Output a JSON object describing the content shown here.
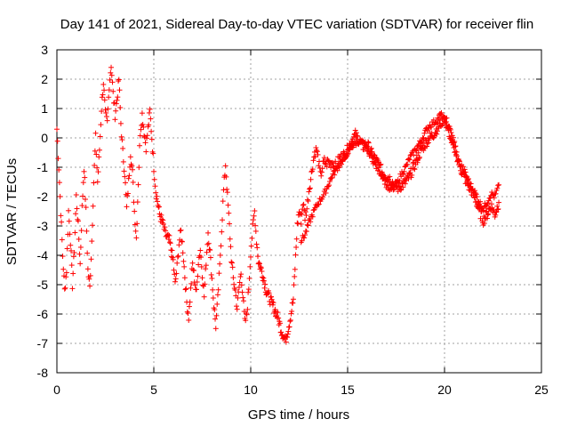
{
  "chart_data": {
    "type": "scatter",
    "title": "Day 141 of 2021, Sidereal Day-to-day VTEC variation (SDTVAR) for receiver flin",
    "xlabel": "GPS time / hours",
    "ylabel": "SDTVAR / TECUs",
    "xlim": [
      0,
      25
    ],
    "ylim": [
      -8,
      3
    ],
    "xticks": [
      "0",
      "5",
      "10",
      "15",
      "20",
      "25"
    ],
    "yticks": [
      "-8",
      "-7",
      "-6",
      "-5",
      "-4",
      "-3",
      "-2",
      "-1",
      "0",
      "1",
      "2",
      "3"
    ],
    "grid": true,
    "marker": "+",
    "color": "#ff0000",
    "series": [
      {
        "name": "SDTVAR",
        "trace": [
          [
            0.0,
            0.3
          ],
          [
            0.1,
            -1.0
          ],
          [
            0.2,
            -2.5
          ],
          [
            0.3,
            -4.0
          ],
          [
            0.4,
            -5.2
          ],
          [
            0.5,
            -4.5
          ],
          [
            0.6,
            -2.5
          ],
          [
            0.7,
            -3.5
          ],
          [
            0.8,
            -5.0
          ],
          [
            0.9,
            -3.8
          ],
          [
            1.0,
            -2.0
          ],
          [
            1.1,
            -3.0
          ],
          [
            1.2,
            -4.3
          ],
          [
            1.3,
            -2.4
          ],
          [
            1.4,
            -1.0
          ],
          [
            1.5,
            -2.5
          ],
          [
            1.6,
            -4.5
          ],
          [
            1.7,
            -5.1
          ],
          [
            1.8,
            -3.5
          ],
          [
            1.9,
            -1.5
          ],
          [
            2.0,
            0.0
          ],
          [
            2.1,
            -1.5
          ],
          [
            2.2,
            -0.4
          ],
          [
            2.3,
            1.0
          ],
          [
            2.4,
            1.9
          ],
          [
            2.5,
            0.8
          ],
          [
            2.6,
            0.5
          ],
          [
            2.7,
            1.8
          ],
          [
            2.8,
            2.5
          ],
          [
            2.9,
            1.5
          ],
          [
            3.0,
            0.8
          ],
          [
            3.1,
            1.3
          ],
          [
            3.2,
            2.0
          ],
          [
            3.3,
            0.5
          ],
          [
            3.4,
            -0.5
          ],
          [
            3.5,
            -1.2
          ],
          [
            3.6,
            -2.4
          ],
          [
            3.7,
            -1.5
          ],
          [
            3.8,
            -0.5
          ],
          [
            3.9,
            -1.2
          ],
          [
            4.0,
            -2.5
          ],
          [
            4.1,
            -3.4
          ],
          [
            4.2,
            -1.5
          ],
          [
            4.3,
            0.2
          ],
          [
            4.4,
            0.8
          ],
          [
            4.5,
            0.2
          ],
          [
            4.6,
            -0.3
          ],
          [
            4.7,
            0.3
          ],
          [
            4.8,
            0.9
          ],
          [
            4.9,
            0.0
          ],
          [
            5.0,
            -1.0
          ],
          [
            5.1,
            -1.8
          ],
          [
            5.3,
            -2.6
          ],
          [
            5.5,
            -3.0
          ],
          [
            5.6,
            -3.3
          ],
          [
            5.8,
            -3.5
          ],
          [
            6.0,
            -4.2
          ],
          [
            6.1,
            -5.0
          ],
          [
            6.2,
            -4.4
          ],
          [
            6.3,
            -3.6
          ],
          [
            6.4,
            -3.2
          ],
          [
            6.5,
            -3.8
          ],
          [
            6.6,
            -4.7
          ],
          [
            6.7,
            -5.6
          ],
          [
            6.8,
            -6.1
          ],
          [
            6.9,
            -5.2
          ],
          [
            7.0,
            -4.3
          ],
          [
            7.1,
            -4.8
          ],
          [
            7.2,
            -5.3
          ],
          [
            7.3,
            -4.2
          ],
          [
            7.4,
            -3.8
          ],
          [
            7.5,
            -4.6
          ],
          [
            7.6,
            -5.4
          ],
          [
            7.7,
            -4.2
          ],
          [
            7.8,
            -3.2
          ],
          [
            7.9,
            -3.9
          ],
          [
            8.0,
            -4.8
          ],
          [
            8.1,
            -5.7
          ],
          [
            8.2,
            -6.4
          ],
          [
            8.3,
            -5.5
          ],
          [
            8.4,
            -4.4
          ],
          [
            8.5,
            -3.1
          ],
          [
            8.6,
            -1.8
          ],
          [
            8.7,
            -0.9
          ],
          [
            8.8,
            -2.0
          ],
          [
            8.9,
            -3.0
          ],
          [
            9.0,
            -4.1
          ],
          [
            9.1,
            -4.8
          ],
          [
            9.2,
            -5.2
          ],
          [
            9.3,
            -5.8
          ],
          [
            9.4,
            -5.1
          ],
          [
            9.5,
            -4.6
          ],
          [
            9.6,
            -5.4
          ],
          [
            9.7,
            -6.3
          ],
          [
            9.8,
            -6.0
          ],
          [
            9.9,
            -5.1
          ],
          [
            10.0,
            -3.9
          ],
          [
            10.1,
            -3.1
          ],
          [
            10.2,
            -2.5
          ],
          [
            10.3,
            -3.5
          ],
          [
            10.4,
            -4.2
          ],
          [
            10.6,
            -4.6
          ],
          [
            10.8,
            -5.2
          ],
          [
            11.0,
            -5.5
          ],
          [
            11.2,
            -5.8
          ],
          [
            11.4,
            -6.1
          ],
          [
            11.6,
            -6.6
          ],
          [
            11.8,
            -6.9
          ],
          [
            12.0,
            -6.3
          ],
          [
            12.2,
            -5.5
          ],
          [
            12.4,
            -3.0
          ],
          [
            12.5,
            -2.5
          ],
          [
            12.6,
            -2.8
          ],
          [
            12.7,
            -2.2
          ],
          [
            12.8,
            -2.7
          ],
          [
            12.9,
            -2.4
          ],
          [
            13.0,
            -1.8
          ],
          [
            13.1,
            -1.4
          ],
          [
            13.2,
            -0.9
          ],
          [
            13.3,
            -0.5
          ],
          [
            13.4,
            -0.4
          ],
          [
            13.5,
            -0.8
          ],
          [
            13.6,
            -1.3
          ],
          [
            13.7,
            -1.0
          ],
          [
            13.8,
            -0.8
          ],
          [
            13.9,
            -0.9
          ],
          [
            14.0,
            -0.8
          ],
          [
            14.1,
            -0.9
          ],
          [
            14.2,
            -0.8
          ],
          [
            14.3,
            -0.9
          ],
          [
            14.4,
            -1.0
          ],
          [
            14.5,
            -0.8
          ],
          [
            14.6,
            -0.7
          ],
          [
            14.8,
            -0.6
          ],
          [
            15.0,
            -0.4
          ],
          [
            15.2,
            -0.1
          ],
          [
            15.4,
            0.1
          ],
          [
            15.6,
            -0.1
          ],
          [
            15.8,
            -0.3
          ],
          [
            16.0,
            -0.2
          ],
          [
            16.2,
            -0.5
          ],
          [
            16.4,
            -0.7
          ],
          [
            16.6,
            -0.9
          ],
          [
            16.8,
            -1.2
          ],
          [
            17.0,
            -1.3
          ],
          [
            17.2,
            -1.4
          ],
          [
            17.4,
            -1.6
          ],
          [
            17.6,
            -1.7
          ],
          [
            17.8,
            -1.6
          ],
          [
            18.0,
            -1.5
          ],
          [
            18.2,
            -1.3
          ],
          [
            18.4,
            -1.0
          ],
          [
            18.6,
            -0.7
          ],
          [
            18.8,
            -0.4
          ],
          [
            19.0,
            -0.2
          ],
          [
            19.2,
            0.0
          ],
          [
            19.4,
            0.1
          ],
          [
            19.6,
            0.3
          ],
          [
            19.8,
            0.5
          ],
          [
            20.0,
            0.7
          ],
          [
            20.2,
            0.4
          ],
          [
            20.4,
            0.0
          ],
          [
            20.6,
            -0.5
          ],
          [
            20.8,
            -1.0
          ],
          [
            21.0,
            -1.3
          ],
          [
            21.2,
            -1.6
          ],
          [
            21.4,
            -1.8
          ],
          [
            21.6,
            -2.1
          ],
          [
            21.8,
            -2.5
          ],
          [
            22.0,
            -2.8
          ],
          [
            22.2,
            -2.6
          ],
          [
            22.4,
            -2.3
          ],
          [
            22.6,
            -2.6
          ],
          [
            22.8,
            -2.2
          ]
        ],
        "secondary_trace": [
          [
            12.6,
            -3.5
          ],
          [
            12.8,
            -3.3
          ],
          [
            13.0,
            -2.9
          ],
          [
            13.2,
            -2.6
          ],
          [
            13.4,
            -2.3
          ],
          [
            13.6,
            -2.1
          ],
          [
            13.8,
            -1.9
          ],
          [
            14.0,
            -1.6
          ],
          [
            14.2,
            -1.3
          ],
          [
            14.4,
            -1.1
          ],
          [
            14.6,
            -0.9
          ],
          [
            14.8,
            -0.7
          ],
          [
            15.0,
            -0.5
          ],
          [
            15.2,
            -0.3
          ],
          [
            15.4,
            -0.2
          ],
          [
            15.6,
            -0.1
          ],
          [
            15.8,
            -0.2
          ],
          [
            16.0,
            -0.4
          ],
          [
            16.2,
            -0.6
          ],
          [
            16.4,
            -0.9
          ],
          [
            16.6,
            -1.1
          ],
          [
            16.8,
            -1.3
          ],
          [
            17.0,
            -1.6
          ],
          [
            17.2,
            -1.8
          ],
          [
            17.4,
            -1.7
          ],
          [
            17.6,
            -1.5
          ],
          [
            17.8,
            -1.2
          ],
          [
            18.0,
            -1.0
          ],
          [
            18.2,
            -0.7
          ],
          [
            18.4,
            -0.5
          ],
          [
            18.6,
            -0.3
          ],
          [
            18.8,
            -0.1
          ],
          [
            19.0,
            0.2
          ],
          [
            19.2,
            0.4
          ],
          [
            19.4,
            0.5
          ],
          [
            19.6,
            0.6
          ],
          [
            19.8,
            0.8
          ],
          [
            20.0,
            0.6
          ],
          [
            20.2,
            0.2
          ],
          [
            20.4,
            -0.2
          ],
          [
            20.6,
            -0.6
          ],
          [
            20.8,
            -0.9
          ],
          [
            21.0,
            -1.1
          ],
          [
            21.2,
            -1.4
          ],
          [
            21.4,
            -1.7
          ],
          [
            21.6,
            -1.9
          ],
          [
            21.8,
            -2.2
          ],
          [
            22.0,
            -2.4
          ],
          [
            22.2,
            -2.2
          ],
          [
            22.4,
            -1.9
          ],
          [
            22.6,
            -2.0
          ],
          [
            22.8,
            -1.6
          ]
        ]
      }
    ]
  }
}
